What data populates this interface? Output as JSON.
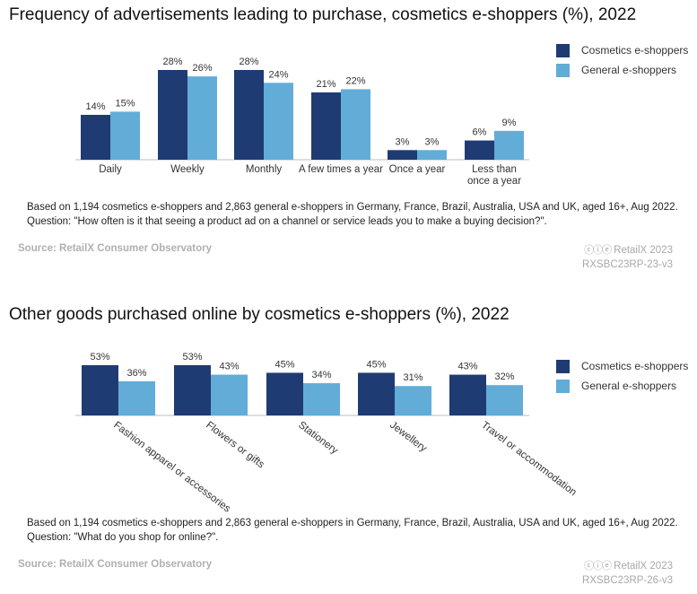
{
  "colors": {
    "cosmetics": "#1f3b73",
    "general": "#62acd8"
  },
  "charts": [
    {
      "title": "Frequency of advertisements leading to purchase, cosmetics e-shoppers (%), 2022",
      "note": "Based on 1,194 cosmetics e-shoppers and 2,863 general e-shoppers in Germany, France, Brazil, Australia, USA and UK, aged 16+, Aug 2022. Question: \"How often is it that seeing a product ad on a channel or service leads you to make a buying decision?\".",
      "source": "Source: RetailX Consumer Observatory",
      "copyright": "RetailX 2023",
      "cc_icon": "cc-by-nd-icon",
      "code": "RXSBC23RP-23-v3",
      "legend": [
        "Cosmetics e-shoppers",
        "General e-shoppers"
      ]
    },
    {
      "title": "Other goods purchased online by cosmetics e-shoppers (%), 2022",
      "note": "Based on 1,194 cosmetics e-shoppers and 2,863 general e-shoppers in Germany, France, Brazil, Australia, USA and UK, aged 16+, Aug 2022. Question: \"What do you shop for online?\".",
      "source": "Source: RetailX Consumer Observatory",
      "copyright": "RetailX 2023",
      "cc_icon": "cc-by-nd-icon",
      "code": "RXSBC23RP-26-v3",
      "legend": [
        "Cosmetics e-shoppers",
        "General e-shoppers"
      ]
    }
  ],
  "chart_data": [
    {
      "type": "bar",
      "title": "Frequency of advertisements leading to purchase, cosmetics e-shoppers (%), 2022",
      "categories": [
        "Daily",
        "Weekly",
        "Monthly",
        "A few times a year",
        "Once a year",
        "Less than once a year"
      ],
      "series": [
        {
          "name": "Cosmetics e-shoppers",
          "values": [
            14,
            28,
            28,
            21,
            3,
            6
          ]
        },
        {
          "name": "General e-shoppers",
          "values": [
            15,
            26,
            24,
            22,
            3,
            9
          ]
        }
      ],
      "data_labels": [
        [
          "14%",
          "28%",
          "28%",
          "21%",
          "3%",
          "6%"
        ],
        [
          "15%",
          "26%",
          "24%",
          "22%",
          "3%",
          "9%"
        ]
      ],
      "ylim": [
        0,
        28
      ],
      "grid": false,
      "legend_position": "top-right"
    },
    {
      "type": "bar",
      "title": "Other goods purchased online by cosmetics e-shoppers (%), 2022",
      "categories": [
        "Fashion apparel or accessories",
        "Flowers or gifts",
        "Stationery",
        "Jewellery",
        "Travel or accommodation"
      ],
      "series": [
        {
          "name": "Cosmetics e-shoppers",
          "values": [
            53,
            53,
            45,
            45,
            43
          ]
        },
        {
          "name": "General e-shoppers",
          "values": [
            36,
            43,
            34,
            31,
            32
          ]
        }
      ],
      "data_labels": [
        [
          "53%",
          "53%",
          "45%",
          "45%",
          "43%"
        ],
        [
          "36%",
          "43%",
          "34%",
          "31%",
          "32%"
        ]
      ],
      "ylim": [
        0,
        53
      ],
      "grid": false,
      "legend_position": "top-right"
    }
  ]
}
